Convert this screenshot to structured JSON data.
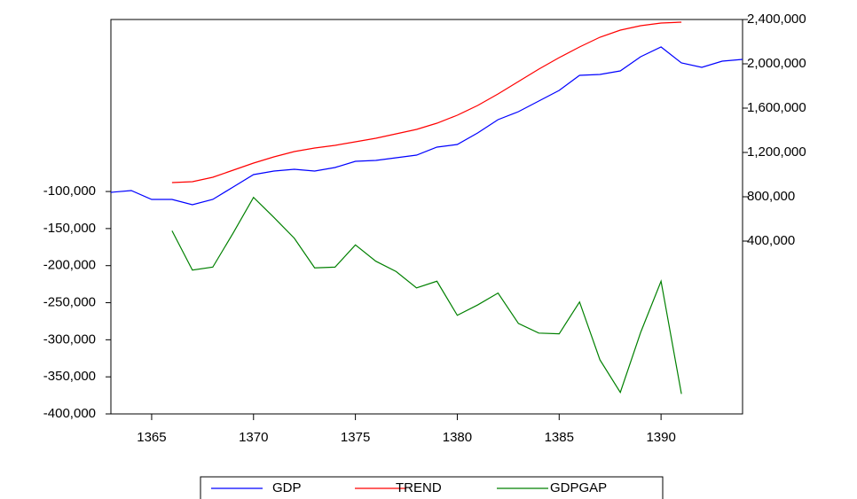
{
  "chart_data": {
    "type": "line",
    "x": [
      1363,
      1364,
      1365,
      1366,
      1367,
      1368,
      1369,
      1370,
      1371,
      1372,
      1373,
      1374,
      1375,
      1376,
      1377,
      1378,
      1379,
      1380,
      1381,
      1382,
      1383,
      1384,
      1385,
      1386,
      1387,
      1388,
      1389,
      1390,
      1391,
      1392,
      1393,
      1394
    ],
    "xlim": [
      1363,
      1394
    ],
    "xticks": [
      1365,
      1370,
      1375,
      1380,
      1385,
      1390
    ],
    "ylim": [
      -400000,
      132000
    ],
    "yticks": [
      {
        "value": -400000,
        "label": "-400,000"
      },
      {
        "value": -350000,
        "label": "-350,000"
      },
      {
        "value": -300000,
        "label": "-300,000"
      },
      {
        "value": -250000,
        "label": "-250,000"
      },
      {
        "value": -200000,
        "label": "-200,000"
      },
      {
        "value": -150000,
        "label": "-150,000"
      },
      {
        "value": -100000,
        "label": "-100,000"
      }
    ],
    "y2lim": [
      -1160000,
      2400000
    ],
    "y2ticks": [
      {
        "value": 400000,
        "label": "400,000"
      },
      {
        "value": 800000,
        "label": "800,000"
      },
      {
        "value": 1200000,
        "label": "1,200,000"
      },
      {
        "value": 1600000,
        "label": "1,600,000"
      },
      {
        "value": 2000000,
        "label": "2,000,000"
      },
      {
        "value": 2400000,
        "label": "2,400,000"
      }
    ],
    "legend": "bottom",
    "series": [
      {
        "name": "GDP",
        "color": "#0000ff",
        "axis": "y2",
        "values": [
          840000,
          856000,
          776000,
          776000,
          728000,
          776000,
          888000,
          1000000,
          1032000,
          1048000,
          1032000,
          1064000,
          1120000,
          1128000,
          1152000,
          1176000,
          1248000,
          1272000,
          1376000,
          1496000,
          1568000,
          1664000,
          1760000,
          1896000,
          1904000,
          1936000,
          2064000,
          2152000,
          2008000,
          1968000,
          2024000,
          2040000
        ]
      },
      {
        "name": "TREND",
        "color": "#ff0000",
        "axis": "y2",
        "values": [
          null,
          null,
          null,
          928000,
          936000,
          976000,
          1040000,
          1104000,
          1160000,
          1208000,
          1240000,
          1264000,
          1296000,
          1328000,
          1368000,
          1408000,
          1464000,
          1536000,
          1624000,
          1728000,
          1840000,
          1952000,
          2056000,
          2152000,
          2240000,
          2304000,
          2344000,
          2368000,
          2376000,
          null,
          null,
          null
        ]
      },
      {
        "name": "GDPGAP",
        "color": "#008000",
        "values": [
          null,
          null,
          null,
          -153000,
          -206000,
          -202000,
          -156000,
          -108000,
          -135000,
          -163000,
          -203000,
          -202000,
          -172000,
          -194000,
          -208000,
          -230000,
          -221000,
          -267000,
          -253000,
          -237000,
          -278000,
          -291000,
          -292000,
          -249000,
          -327000,
          -371000,
          -290000,
          -221000,
          -373000,
          null,
          null,
          null
        ]
      }
    ]
  }
}
